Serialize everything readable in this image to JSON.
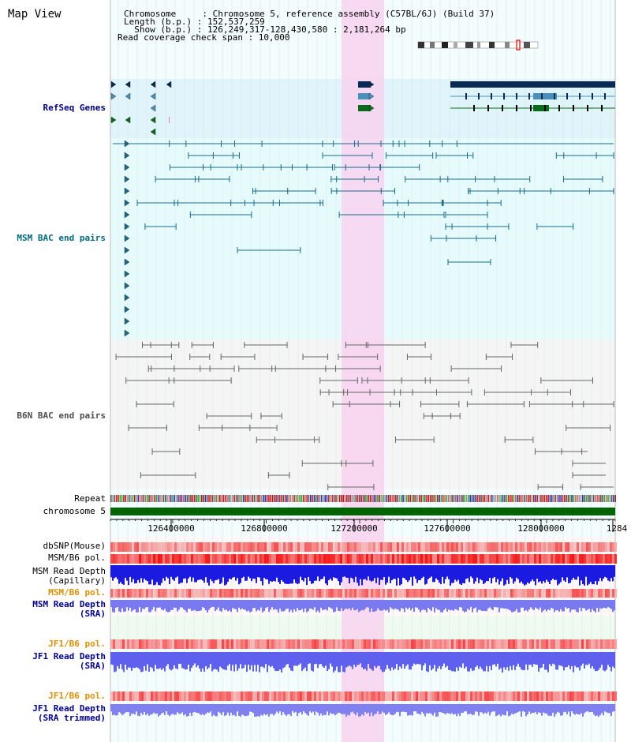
{
  "title": "Map View",
  "info": {
    "chromosome_label": "Chromosome     : Chromosome 5, reference assembly (C57BL/6J) (Build 37)",
    "length_label": "Length (b.p.) : 152,537,259",
    "show_label": "  Show (b.p.) : 126,249,317-128,430,580 : 2,181,264 bp",
    "coverage_label": "Read coverage check span : 10,000"
  },
  "tracks": {
    "refseq": "RefSeq Genes",
    "msm_bac": "MSM BAC end pairs",
    "b6n_bac": "B6N BAC end pairs",
    "repeat": "Repeat",
    "chromosome": "chromosome 5",
    "dbsnp": "dbSNP(Mouse)",
    "msm_b6_pol": "MSM/B6 pol.",
    "msm_read_depth_cap_1": "MSM Read Depth",
    "msm_read_depth_cap_2": "(Capillary)",
    "msm_b6_pol_sra": "MSM/B6 pol.",
    "msm_read_depth_sra_1": "MSM Read Depth",
    "msm_read_depth_sra_2": "(SRA)",
    "jf1_b6_pol": "JF1/B6 pol.",
    "jf1_read_depth_1": "JF1 Read Depth",
    "jf1_read_depth_2": "(SRA)",
    "jf1_b6_pol_trim": "JF1/B6 pol.",
    "jf1_trim_1": "JF1 Read Depth",
    "jf1_trim_2": "(SRA trimmed)"
  },
  "axis": {
    "ticks": [
      "126400000",
      "126800000",
      "127200000",
      "127600000",
      "128000000",
      "1284"
    ]
  },
  "colors": {
    "refseq_bg": "#dff4fb",
    "msm_bg": "#e6fcfc",
    "b6n_bg": "#f5f5f5",
    "highlight": "#f8d2f0",
    "gene_navy": "#0a2a55",
    "gene_steel": "#4a90b8",
    "gene_green": "#0a6a1a",
    "msm_line": "#1a6a8a",
    "b6n_line": "#666666",
    "chromosome": "#006400"
  }
}
